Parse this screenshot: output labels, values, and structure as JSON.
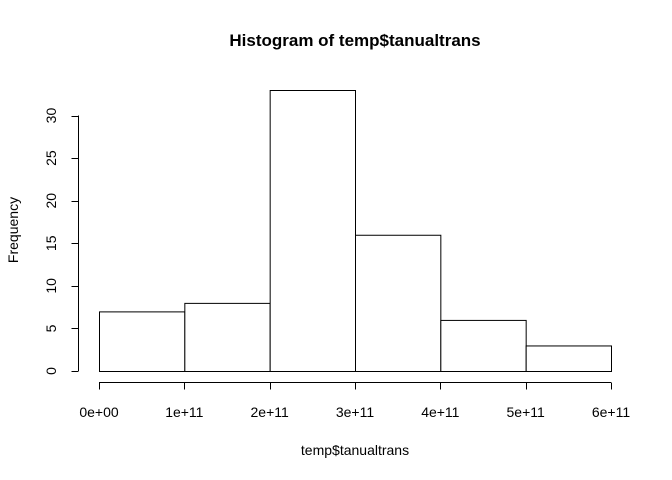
{
  "chart_data": {
    "type": "bar",
    "title": "Histogram of temp$tanualtrans",
    "xlabel": "temp$tanualtrans",
    "ylabel": "Frequency",
    "bins": [
      {
        "start": 0,
        "end": 100000000000,
        "count": 7
      },
      {
        "start": 100000000000,
        "end": 200000000000,
        "count": 8
      },
      {
        "start": 200000000000,
        "end": 300000000000,
        "count": 33
      },
      {
        "start": 300000000000,
        "end": 400000000000,
        "count": 16
      },
      {
        "start": 400000000000,
        "end": 500000000000,
        "count": 6
      },
      {
        "start": 500000000000,
        "end": 600000000000,
        "count": 3
      }
    ],
    "xlim": [
      0,
      600000000000
    ],
    "ylim": [
      0,
      33
    ],
    "x_ticks": [
      {
        "value": 0,
        "label": "0e+00"
      },
      {
        "value": 100000000000,
        "label": "1e+11"
      },
      {
        "value": 200000000000,
        "label": "2e+11"
      },
      {
        "value": 300000000000,
        "label": "3e+11"
      },
      {
        "value": 400000000000,
        "label": "4e+11"
      },
      {
        "value": 500000000000,
        "label": "5e+11"
      },
      {
        "value": 600000000000,
        "label": "6e+11"
      }
    ],
    "y_ticks": [
      {
        "value": 0,
        "label": "0"
      },
      {
        "value": 5,
        "label": "5"
      },
      {
        "value": 10,
        "label": "10"
      },
      {
        "value": 15,
        "label": "15"
      },
      {
        "value": 20,
        "label": "20"
      },
      {
        "value": 25,
        "label": "25"
      },
      {
        "value": 30,
        "label": "30"
      }
    ],
    "grid": false,
    "bar_fill": "#ffffff",
    "bar_stroke": "#000000"
  }
}
